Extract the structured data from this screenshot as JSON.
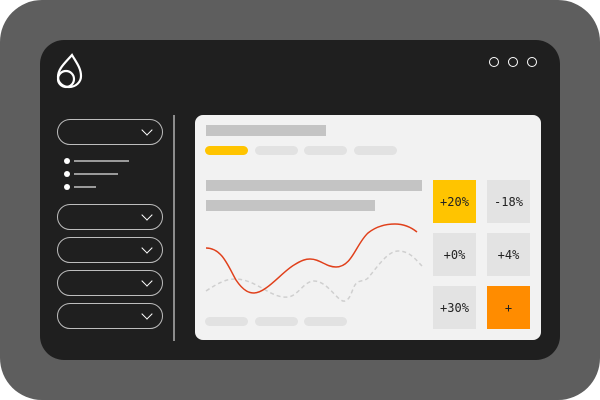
{
  "colors": {
    "accent_yellow": "#ffc400",
    "accent_orange": "#ff8c00",
    "line_red": "#e0401b"
  },
  "logo": {
    "icon": "leaf-drop-logo-icon"
  },
  "window_controls": [
    "dot",
    "dot",
    "dot"
  ],
  "tiles": [
    {
      "label": "+20%",
      "highlight": "yellow"
    },
    {
      "label": "-18%"
    },
    {
      "label": "+0%"
    },
    {
      "label": "+4%"
    },
    {
      "label": "+30%"
    },
    {
      "label": "+",
      "highlight": "orange"
    }
  ]
}
